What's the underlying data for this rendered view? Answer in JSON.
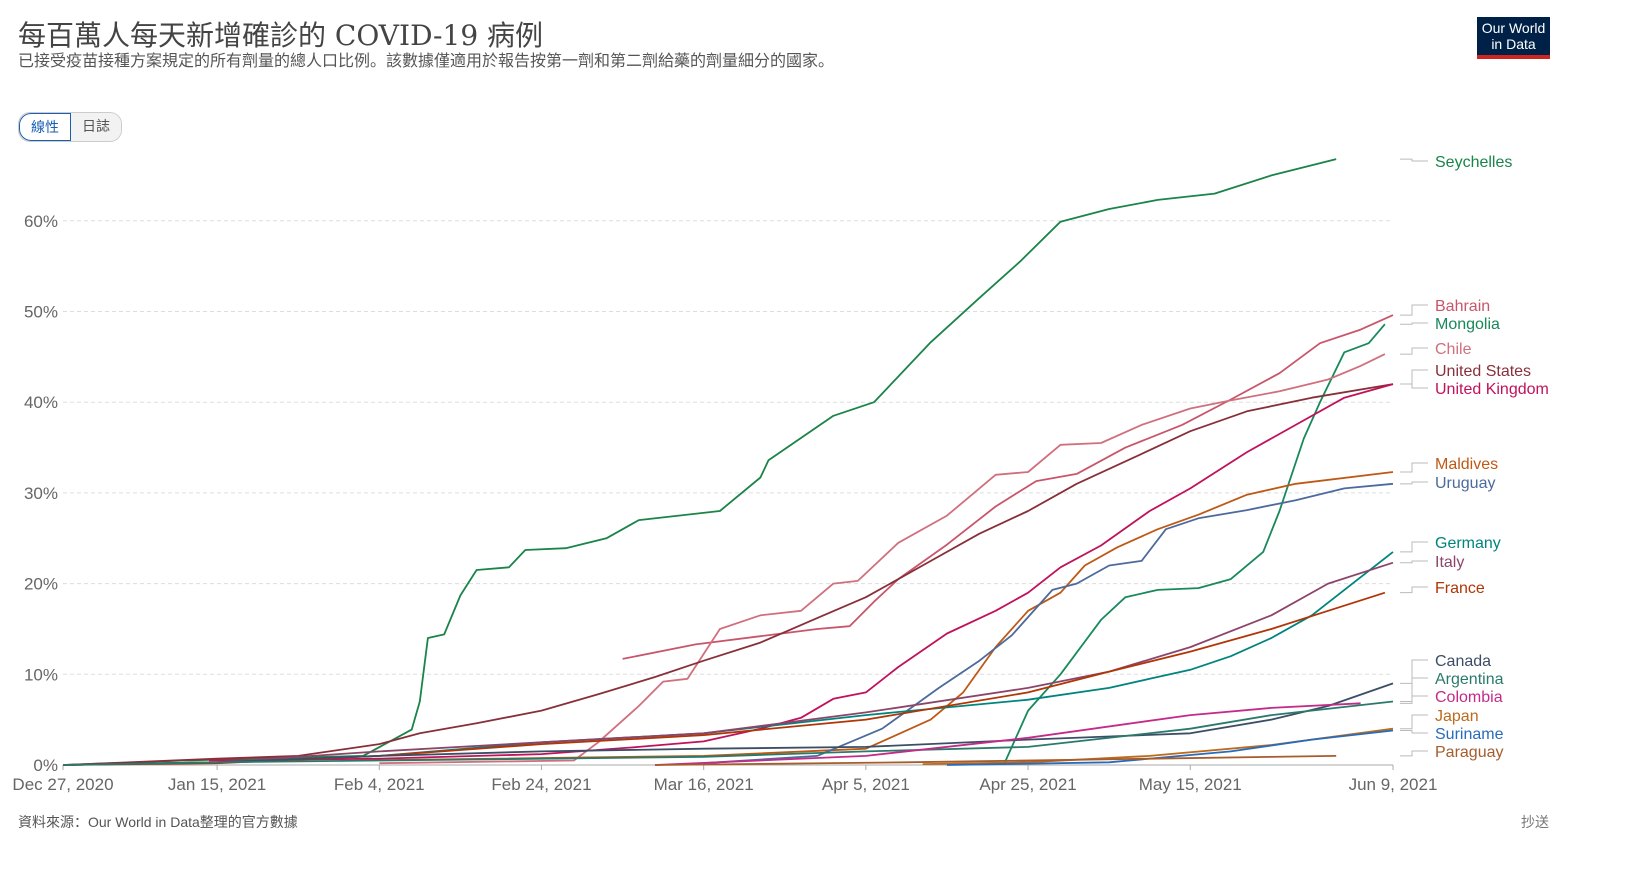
{
  "header": {
    "title": "每百萬人每天新增確診的 COVID-19 病例",
    "subtitle": "已接受疫苗接種方案規定的所有劑量的總人口比例。該數據僅適用於報告按第一劑和第二劑給藥的劑量細分的國家。",
    "toggle": [
      "線性",
      "日誌"
    ],
    "logo": [
      "Our World",
      "in Data"
    ]
  },
  "footer": {
    "source": "資料來源：Our World in Data整理的官方數據",
    "share": "抄送"
  },
  "chart_data": {
    "type": "line",
    "title": "每百萬人每天新增確診的 COVID-19 病例",
    "xlim": [
      "2020-12-27",
      "2021-06-09"
    ],
    "x_ticks": [
      "Dec 27, 2020",
      "Jan 15, 2021",
      "Feb 4, 2021",
      "Feb 24, 2021",
      "Mar 16, 2021",
      "Apr 5, 2021",
      "Apr 25, 2021",
      "May 15, 2021",
      "Jun 9, 2021"
    ],
    "x_tick_dates": [
      "2020-12-27",
      "2021-01-15",
      "2021-02-04",
      "2021-02-24",
      "2021-03-16",
      "2021-04-05",
      "2021-04-25",
      "2021-05-15",
      "2021-06-09"
    ],
    "ylim": [
      0,
      67
    ],
    "y_ticks": [
      "0%",
      "10%",
      "20%",
      "30%",
      "40%",
      "50%",
      "60%"
    ],
    "y_tick_values": [
      0,
      10,
      20,
      30,
      40,
      50,
      60
    ],
    "grid": true,
    "legend": "right",
    "series": [
      {
        "name": "Seychelles",
        "color": "#1a8449",
        "points": [
          [
            "2020-12-27",
            0
          ],
          [
            "2021-01-11",
            0.5
          ],
          [
            "2021-02-02",
            1
          ],
          [
            "2021-02-08",
            3.9
          ],
          [
            "2021-02-09",
            7
          ],
          [
            "2021-02-10",
            14
          ],
          [
            "2021-02-12",
            14.4
          ],
          [
            "2021-02-14",
            18.7
          ],
          [
            "2021-02-16",
            21.5
          ],
          [
            "2021-02-20",
            21.8
          ],
          [
            "2021-02-22",
            23.7
          ],
          [
            "2021-02-27",
            23.9
          ],
          [
            "2021-03-04",
            25
          ],
          [
            "2021-03-08",
            27
          ],
          [
            "2021-03-18",
            28
          ],
          [
            "2021-03-23",
            31.7
          ],
          [
            "2021-03-24",
            33.6
          ],
          [
            "2021-04-01",
            38.5
          ],
          [
            "2021-04-06",
            40
          ],
          [
            "2021-04-13",
            46.6
          ],
          [
            "2021-04-19",
            51.5
          ],
          [
            "2021-04-24",
            55.5
          ],
          [
            "2021-04-29",
            59.9
          ],
          [
            "2021-05-05",
            61.3
          ],
          [
            "2021-05-11",
            62.3
          ],
          [
            "2021-05-18",
            63
          ],
          [
            "2021-05-25",
            65
          ],
          [
            "2021-06-02",
            66.8
          ]
        ]
      },
      {
        "name": "Bahrain",
        "color": "#c8566b",
        "points": [
          [
            "2021-03-06",
            11.7
          ],
          [
            "2021-03-15",
            13.3
          ],
          [
            "2021-03-23",
            14.2
          ],
          [
            "2021-03-30",
            15
          ],
          [
            "2021-04-03",
            15.3
          ],
          [
            "2021-04-06",
            18
          ],
          [
            "2021-04-09",
            20.5
          ],
          [
            "2021-04-15",
            24.3
          ],
          [
            "2021-04-21",
            28.5
          ],
          [
            "2021-04-26",
            31.3
          ],
          [
            "2021-05-01",
            32.1
          ],
          [
            "2021-05-07",
            35
          ],
          [
            "2021-05-14",
            37.5
          ],
          [
            "2021-05-20",
            40.3
          ],
          [
            "2021-05-26",
            43.2
          ],
          [
            "2021-05-31",
            46.5
          ],
          [
            "2021-06-05",
            48
          ],
          [
            "2021-06-09",
            49.6
          ]
        ]
      },
      {
        "name": "Mongolia",
        "color": "#18895a",
        "points": [
          [
            "2021-04-22",
            0
          ],
          [
            "2021-04-25",
            6
          ],
          [
            "2021-04-29",
            10
          ],
          [
            "2021-05-04",
            16
          ],
          [
            "2021-05-07",
            18.5
          ],
          [
            "2021-05-11",
            19.3
          ],
          [
            "2021-05-16",
            19.5
          ],
          [
            "2021-05-20",
            20.5
          ],
          [
            "2021-05-24",
            23.5
          ],
          [
            "2021-05-26",
            28
          ],
          [
            "2021-05-29",
            36
          ],
          [
            "2021-05-31",
            40
          ],
          [
            "2021-06-03",
            45.5
          ],
          [
            "2021-06-06",
            46.5
          ],
          [
            "2021-06-08",
            48.6
          ]
        ]
      },
      {
        "name": "Chile",
        "color": "#d0707e",
        "points": [
          [
            "2021-02-04",
            0.2
          ],
          [
            "2021-02-28",
            0.5
          ],
          [
            "2021-03-03",
            2.5
          ],
          [
            "2021-03-08",
            6.5
          ],
          [
            "2021-03-11",
            9.2
          ],
          [
            "2021-03-14",
            9.5
          ],
          [
            "2021-03-18",
            15
          ],
          [
            "2021-03-23",
            16.5
          ],
          [
            "2021-03-28",
            17
          ],
          [
            "2021-04-01",
            20
          ],
          [
            "2021-04-04",
            20.3
          ],
          [
            "2021-04-09",
            24.5
          ],
          [
            "2021-04-15",
            27.5
          ],
          [
            "2021-04-21",
            32
          ],
          [
            "2021-04-25",
            32.3
          ],
          [
            "2021-04-29",
            35.3
          ],
          [
            "2021-05-04",
            35.5
          ],
          [
            "2021-05-09",
            37.5
          ],
          [
            "2021-05-15",
            39.3
          ],
          [
            "2021-05-20",
            40.2
          ],
          [
            "2021-05-26",
            41.2
          ],
          [
            "2021-06-01",
            42.5
          ],
          [
            "2021-06-05",
            44
          ],
          [
            "2021-06-08",
            45.3
          ]
        ]
      },
      {
        "name": "United States",
        "color": "#883039",
        "points": [
          [
            "2020-12-27",
            0
          ],
          [
            "2021-01-15",
            0.7
          ],
          [
            "2021-01-25",
            1
          ],
          [
            "2021-02-04",
            2.3
          ],
          [
            "2021-02-09",
            3.5
          ],
          [
            "2021-02-16",
            4.6
          ],
          [
            "2021-02-24",
            6
          ],
          [
            "2021-03-03",
            7.8
          ],
          [
            "2021-03-10",
            9.7
          ],
          [
            "2021-03-16",
            11.5
          ],
          [
            "2021-03-23",
            13.5
          ],
          [
            "2021-03-30",
            16.2
          ],
          [
            "2021-04-05",
            18.5
          ],
          [
            "2021-04-12",
            22
          ],
          [
            "2021-04-19",
            25.5
          ],
          [
            "2021-04-25",
            28
          ],
          [
            "2021-05-01",
            31
          ],
          [
            "2021-05-09",
            34.3
          ],
          [
            "2021-05-15",
            36.8
          ],
          [
            "2021-05-22",
            39
          ],
          [
            "2021-05-30",
            40.5
          ],
          [
            "2021-06-09",
            42
          ]
        ]
      },
      {
        "name": "United Kingdom",
        "color": "#c0125b",
        "points": [
          [
            "2021-01-14",
            0.5
          ],
          [
            "2021-02-04",
            0.7
          ],
          [
            "2021-02-24",
            1.2
          ],
          [
            "2021-03-08",
            2
          ],
          [
            "2021-03-16",
            2.6
          ],
          [
            "2021-03-23",
            4
          ],
          [
            "2021-03-28",
            5.2
          ],
          [
            "2021-04-01",
            7.3
          ],
          [
            "2021-04-05",
            8
          ],
          [
            "2021-04-09",
            10.8
          ],
          [
            "2021-04-15",
            14.5
          ],
          [
            "2021-04-21",
            17
          ],
          [
            "2021-04-25",
            19
          ],
          [
            "2021-04-29",
            21.8
          ],
          [
            "2021-05-04",
            24.2
          ],
          [
            "2021-05-10",
            28
          ],
          [
            "2021-05-15",
            30.5
          ],
          [
            "2021-05-22",
            34.5
          ],
          [
            "2021-05-28",
            37.5
          ],
          [
            "2021-06-03",
            40.5
          ],
          [
            "2021-06-09",
            42
          ]
        ]
      },
      {
        "name": "Maldives",
        "color": "#be5915",
        "points": [
          [
            "2021-02-01",
            0.5
          ],
          [
            "2021-03-16",
            1
          ],
          [
            "2021-04-05",
            1.8
          ],
          [
            "2021-04-08",
            3
          ],
          [
            "2021-04-13",
            5
          ],
          [
            "2021-04-17",
            8
          ],
          [
            "2021-04-21",
            13
          ],
          [
            "2021-04-25",
            17
          ],
          [
            "2021-04-29",
            19
          ],
          [
            "2021-05-02",
            22
          ],
          [
            "2021-05-06",
            24
          ],
          [
            "2021-05-11",
            26
          ],
          [
            "2021-05-16",
            27.6
          ],
          [
            "2021-05-22",
            29.8
          ],
          [
            "2021-05-28",
            31
          ],
          [
            "2021-06-09",
            32.3
          ]
        ]
      },
      {
        "name": "Uruguay",
        "color": "#4c6a9c",
        "points": [
          [
            "2021-03-16",
            0.2
          ],
          [
            "2021-03-30",
            1
          ],
          [
            "2021-04-07",
            4
          ],
          [
            "2021-04-14",
            8.5
          ],
          [
            "2021-04-19",
            11.5
          ],
          [
            "2021-04-23",
            14.3
          ],
          [
            "2021-04-28",
            19.3
          ],
          [
            "2021-05-01",
            20
          ],
          [
            "2021-05-05",
            22
          ],
          [
            "2021-05-09",
            22.5
          ],
          [
            "2021-05-12",
            26
          ],
          [
            "2021-05-16",
            27.2
          ],
          [
            "2021-05-22",
            28.1
          ],
          [
            "2021-05-28",
            29.2
          ],
          [
            "2021-06-03",
            30.5
          ],
          [
            "2021-06-09",
            31
          ]
        ]
      },
      {
        "name": "Germany",
        "color": "#00847e",
        "points": [
          [
            "2020-12-27",
            0
          ],
          [
            "2021-01-15",
            0.3
          ],
          [
            "2021-02-04",
            1
          ],
          [
            "2021-02-24",
            2.5
          ],
          [
            "2021-03-16",
            3.5
          ],
          [
            "2021-04-05",
            5.5
          ],
          [
            "2021-04-25",
            7.2
          ],
          [
            "2021-05-05",
            8.5
          ],
          [
            "2021-05-10",
            9.5
          ],
          [
            "2021-05-15",
            10.5
          ],
          [
            "2021-05-20",
            12
          ],
          [
            "2021-05-25",
            14
          ],
          [
            "2021-05-30",
            16.5
          ],
          [
            "2021-06-04",
            20
          ],
          [
            "2021-06-09",
            23.5
          ]
        ]
      },
      {
        "name": "Italy",
        "color": "#8c4569",
        "points": [
          [
            "2020-12-27",
            0
          ],
          [
            "2021-01-15",
            0.3
          ],
          [
            "2021-02-04",
            1.5
          ],
          [
            "2021-02-24",
            2.5
          ],
          [
            "2021-03-16",
            3.5
          ],
          [
            "2021-04-05",
            5.8
          ],
          [
            "2021-04-25",
            8.5
          ],
          [
            "2021-05-05",
            10.3
          ],
          [
            "2021-05-15",
            13
          ],
          [
            "2021-05-25",
            16.5
          ],
          [
            "2021-06-01",
            20
          ],
          [
            "2021-06-09",
            22.3
          ]
        ]
      },
      {
        "name": "France",
        "color": "#b13507",
        "points": [
          [
            "2020-12-27",
            0
          ],
          [
            "2021-01-15",
            0.2
          ],
          [
            "2021-02-04",
            1
          ],
          [
            "2021-02-24",
            2.3
          ],
          [
            "2021-03-16",
            3.3
          ],
          [
            "2021-04-05",
            5
          ],
          [
            "2021-04-25",
            8
          ],
          [
            "2021-05-05",
            10.3
          ],
          [
            "2021-05-15",
            12.5
          ],
          [
            "2021-05-25",
            15
          ],
          [
            "2021-06-01",
            17
          ],
          [
            "2021-06-08",
            19
          ]
        ]
      },
      {
        "name": "Canada",
        "color": "#3c4e66",
        "points": [
          [
            "2020-12-27",
            0
          ],
          [
            "2021-01-15",
            0.3
          ],
          [
            "2021-02-04",
            1
          ],
          [
            "2021-02-24",
            1.5
          ],
          [
            "2021-03-16",
            1.8
          ],
          [
            "2021-04-05",
            2
          ],
          [
            "2021-04-25",
            2.8
          ],
          [
            "2021-05-15",
            3.5
          ],
          [
            "2021-05-25",
            5
          ],
          [
            "2021-06-01",
            6.5
          ],
          [
            "2021-06-09",
            9
          ]
        ]
      },
      {
        "name": "Argentina",
        "color": "#2a7a6a",
        "points": [
          [
            "2020-12-27",
            0
          ],
          [
            "2021-01-15",
            0.3
          ],
          [
            "2021-02-04",
            0.5
          ],
          [
            "2021-02-24",
            0.7
          ],
          [
            "2021-03-16",
            0.9
          ],
          [
            "2021-04-05",
            1.5
          ],
          [
            "2021-04-25",
            2
          ],
          [
            "2021-05-15",
            4
          ],
          [
            "2021-05-25",
            5.5
          ],
          [
            "2021-06-09",
            7
          ]
        ]
      },
      {
        "name": "Colombia",
        "color": "#c42a88",
        "points": [
          [
            "2021-03-10",
            0
          ],
          [
            "2021-04-05",
            1
          ],
          [
            "2021-04-25",
            3
          ],
          [
            "2021-05-15",
            5.5
          ],
          [
            "2021-05-25",
            6.3
          ],
          [
            "2021-06-05",
            6.8
          ]
        ]
      },
      {
        "name": "Japan",
        "color": "#bc6b1c",
        "points": [
          [
            "2021-04-12",
            0.1
          ],
          [
            "2021-04-25",
            0.3
          ],
          [
            "2021-05-10",
            1
          ],
          [
            "2021-05-25",
            2.2
          ],
          [
            "2021-06-09",
            4
          ]
        ]
      },
      {
        "name": "Suriname",
        "color": "#286bbb",
        "points": [
          [
            "2021-04-15",
            0
          ],
          [
            "2021-05-05",
            0.3
          ],
          [
            "2021-05-20",
            1.5
          ],
          [
            "2021-05-30",
            2.8
          ],
          [
            "2021-06-09",
            3.8
          ]
        ]
      },
      {
        "name": "Paraguay",
        "color": "#a65c2b",
        "points": [
          [
            "2021-03-10",
            0
          ],
          [
            "2021-04-10",
            0.3
          ],
          [
            "2021-05-10",
            0.7
          ],
          [
            "2021-06-02",
            1
          ]
        ]
      }
    ]
  }
}
